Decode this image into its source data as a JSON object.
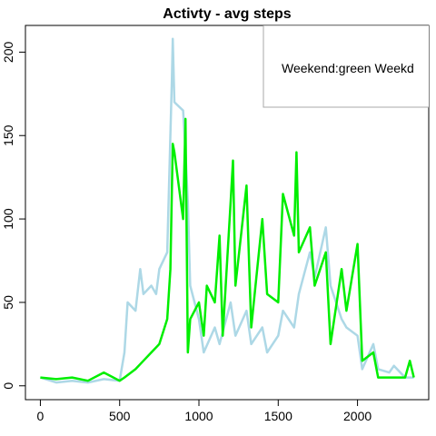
{
  "chart_data": {
    "type": "line",
    "title": "Activty - avg steps",
    "legend_text": "Weekend:green Weekd",
    "xlim": [
      -94.2,
      2449.2
    ],
    "ylim": [
      -8.3,
      216
    ],
    "xticks": [
      0,
      500,
      1000,
      1500,
      2000
    ],
    "yticks": [
      0,
      50,
      100,
      150,
      200
    ],
    "series": [
      {
        "name": "Weekday",
        "color": "#add8e6",
        "x": [
          0,
          100,
          200,
          300,
          400,
          500,
          530,
          550,
          600,
          630,
          650,
          700,
          730,
          750,
          800,
          830,
          835,
          845,
          900,
          915,
          930,
          945,
          1000,
          1030,
          1100,
          1130,
          1200,
          1230,
          1300,
          1330,
          1400,
          1430,
          1500,
          1530,
          1600,
          1630,
          1700,
          1730,
          1800,
          1830,
          1900,
          1930,
          2000,
          2030,
          2100,
          2130,
          2200,
          2230,
          2300,
          2355
        ],
        "values": [
          5,
          2,
          3,
          2,
          4,
          3,
          20,
          50,
          45,
          70,
          55,
          60,
          55,
          70,
          80,
          185,
          208,
          170,
          165,
          140,
          110,
          60,
          40,
          20,
          35,
          25,
          50,
          30,
          45,
          25,
          35,
          20,
          30,
          45,
          35,
          55,
          80,
          65,
          95,
          60,
          40,
          35,
          30,
          10,
          25,
          10,
          8,
          12,
          5,
          5
        ]
      },
      {
        "name": "Weekend",
        "color": "#00ee00",
        "x": [
          0,
          100,
          200,
          300,
          400,
          500,
          530,
          600,
          650,
          700,
          750,
          800,
          820,
          835,
          845,
          900,
          915,
          930,
          945,
          1000,
          1030,
          1050,
          1100,
          1130,
          1150,
          1200,
          1215,
          1230,
          1300,
          1330,
          1400,
          1430,
          1500,
          1530,
          1600,
          1615,
          1630,
          1700,
          1730,
          1800,
          1830,
          1900,
          1930,
          2000,
          2030,
          2100,
          2130,
          2200,
          2300,
          2330,
          2355
        ],
        "values": [
          5,
          4,
          5,
          3,
          8,
          3,
          5,
          10,
          15,
          20,
          25,
          40,
          70,
          145,
          140,
          100,
          160,
          20,
          40,
          50,
          30,
          60,
          50,
          90,
          30,
          110,
          135,
          60,
          120,
          35,
          100,
          55,
          50,
          115,
          90,
          140,
          80,
          95,
          60,
          80,
          25,
          70,
          45,
          85,
          15,
          20,
          5,
          5,
          5,
          15,
          5
        ]
      }
    ]
  }
}
